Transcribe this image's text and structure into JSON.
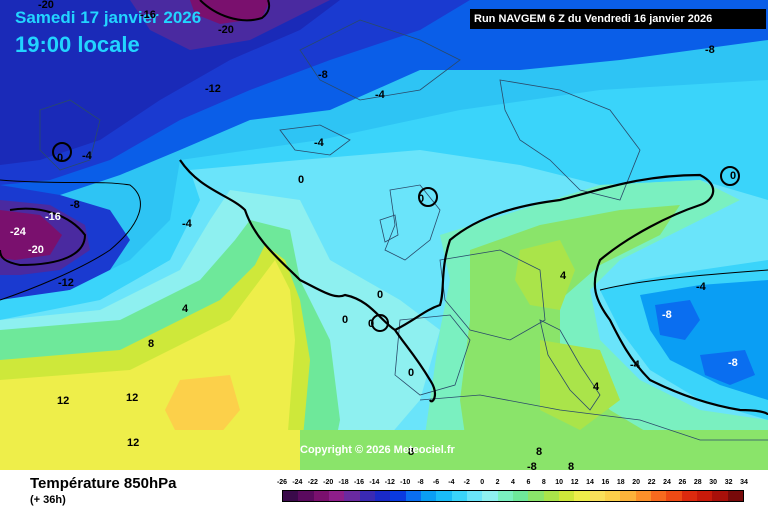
{
  "header": {
    "date_title": "Samedi 17 janvier 2026",
    "time_title": "19:00 locale",
    "run_info": "Run NAVGEM 6 Z du Vendredi 16 janvier 2026"
  },
  "map": {
    "copyright": "Copyright © 2026 Meteociel.fr",
    "contour_labels": [
      {
        "text": "-20"
      },
      {
        "text": "-16"
      },
      {
        "text": "-20"
      },
      {
        "text": "-12"
      },
      {
        "text": "-8"
      },
      {
        "text": "-4"
      },
      {
        "text": "-8"
      },
      {
        "text": "0"
      },
      {
        "text": "-4"
      },
      {
        "text": "-4"
      },
      {
        "text": "0"
      },
      {
        "text": "0"
      },
      {
        "text": "0"
      },
      {
        "text": "-8"
      },
      {
        "text": "-16"
      },
      {
        "text": "-24"
      },
      {
        "text": "-20"
      },
      {
        "text": "-4"
      },
      {
        "text": "-12"
      },
      {
        "text": "4"
      },
      {
        "text": "0"
      },
      {
        "text": "0"
      },
      {
        "text": "0"
      },
      {
        "text": "0"
      },
      {
        "text": "8"
      },
      {
        "text": "4"
      },
      {
        "text": "-4"
      },
      {
        "text": "-8"
      },
      {
        "text": "-8"
      },
      {
        "text": "-4"
      },
      {
        "text": "4"
      },
      {
        "text": "12"
      },
      {
        "text": "12"
      },
      {
        "text": "12"
      },
      {
        "text": "8"
      },
      {
        "text": "8"
      },
      {
        "text": "-8"
      },
      {
        "text": "8"
      }
    ]
  },
  "footer": {
    "parameter_title": "Température 850hPa",
    "lead_time": "(+ 36h)",
    "scale_ticks": [
      "-26",
      "-24",
      "-22",
      "-20",
      "-18",
      "-16",
      "-14",
      "-12",
      "-10",
      "-8",
      "-6",
      "-4",
      "-2",
      "0",
      "2",
      "4",
      "6",
      "8",
      "10",
      "12",
      "14",
      "16",
      "18",
      "20",
      "22",
      "24",
      "26",
      "28",
      "30",
      "32",
      "34"
    ],
    "scale_colors": [
      "#3a0a4a",
      "#5a0a5e",
      "#7a106e",
      "#8e1e8a",
      "#6a2aa0",
      "#3a2ab4",
      "#1a2ac8",
      "#0a3ae0",
      "#0a6ef0",
      "#0a9ef4",
      "#1abcf8",
      "#3ad4fa",
      "#6ae4fa",
      "#8ef0f0",
      "#7af0c0",
      "#6ee89a",
      "#8ae46a",
      "#aae44a",
      "#cee83a",
      "#eeee4a",
      "#fae05a",
      "#fcd04a",
      "#fcb23a",
      "#fc902a",
      "#f86a1e",
      "#ee4a14",
      "#dc2a0e",
      "#c81a0a",
      "#a8100a",
      "#780a0a"
    ]
  }
}
